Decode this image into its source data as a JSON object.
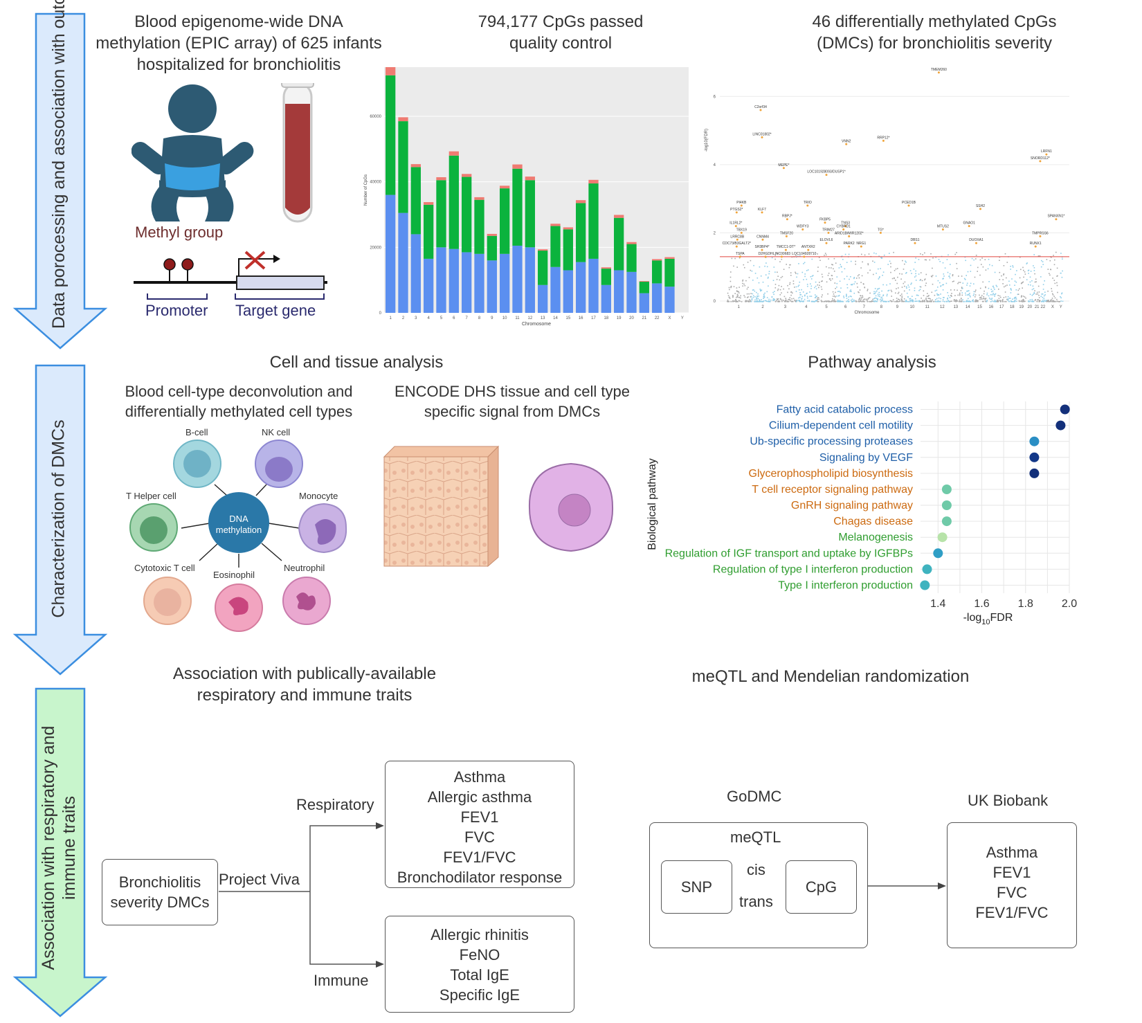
{
  "stages": [
    {
      "label": "Data porocessing and association with outcome",
      "color": "#dbeafc"
    },
    {
      "label": "Characterization of DMCs",
      "color": "#dbeafc"
    },
    {
      "label": "Association with respiratory and immune traits",
      "color": "#c8f5cc"
    }
  ],
  "section1": {
    "title1": "Blood epigenome-wide DNA methylation (EPIC array) of 625 infants hospitalized for bronchiolitis",
    "methyl_label": "Methyl group",
    "promoter_label": "Promoter",
    "target_label": "Target gene",
    "title2": "794,177 CpGs passed quality control",
    "title3": "46 differentially methylated CpGs (DMCs) for bronchiolitis severity"
  },
  "chart_data": [
    {
      "type": "bar",
      "title": "794,177 CpGs passed quality control",
      "xlabel": "Chromosome",
      "ylabel": "Number of CpGs",
      "ylim": [
        0,
        75000
      ],
      "yticks": [
        "0",
        "20000",
        "40000",
        "60000"
      ],
      "categories": [
        "1",
        "2",
        "3",
        "4",
        "5",
        "6",
        "7",
        "8",
        "9",
        "10",
        "11",
        "12",
        "13",
        "14",
        "15",
        "16",
        "17",
        "18",
        "19",
        "20",
        "21",
        "22",
        "X",
        "Y"
      ],
      "series": [
        {
          "name": "blue",
          "color": "#5b8ff0",
          "values": [
            36000,
            30500,
            24000,
            16500,
            20000,
            19500,
            18500,
            18000,
            16000,
            18000,
            20500,
            20000,
            8500,
            14000,
            13000,
            15500,
            16500,
            8500,
            13000,
            12500,
            6000,
            9000,
            8000,
            0
          ]
        },
        {
          "name": "green",
          "color": "#0bb33d",
          "values": [
            36500,
            28000,
            20500,
            16500,
            20500,
            28500,
            23000,
            16500,
            7500,
            20000,
            23500,
            20500,
            10500,
            12500,
            12500,
            18000,
            23000,
            5000,
            16000,
            8500,
            3500,
            7000,
            8500,
            0
          ]
        },
        {
          "name": "red",
          "color": "#ef7b72",
          "values": [
            2500,
            1200,
            900,
            800,
            900,
            1300,
            900,
            800,
            600,
            800,
            1300,
            1100,
            400,
            700,
            600,
            900,
            1100,
            400,
            900,
            600,
            200,
            400,
            500,
            0
          ]
        }
      ]
    },
    {
      "type": "scatter",
      "title": "46 differentially methylated CpGs (DMCs) for bronchiolitis severity",
      "xlabel": "Chromosome",
      "ylabel": "-log10(FDR)",
      "ylim": [
        0,
        7
      ],
      "yticks": [
        "0",
        "2",
        "4",
        "6"
      ],
      "categories": [
        "1",
        "2",
        "3",
        "4",
        "5",
        "6",
        "7",
        "8",
        "9",
        "10",
        "11",
        "12",
        "13",
        "14",
        "15",
        "16",
        "17",
        "18",
        "19",
        "20",
        "21",
        "22",
        "X",
        "Y"
      ],
      "threshold": 1.3,
      "labels": [
        "TMEM260",
        "C2orf34",
        "LINC01802*",
        "VNN2",
        "RRP12*",
        "LRFN1",
        "SNORD112*",
        "MEPE*",
        "LOC101928093/DUSP1*",
        "TRIO",
        "PI4KB",
        "PCED1B",
        "PTGS2*",
        "KLF7",
        "SSH2",
        "RBPJ*",
        "SPANXN1*",
        "IL1RL2*",
        "FKBP5",
        "TNS3",
        "GNAO1",
        "TBX19",
        "WDFY3",
        "CYBRD1",
        "TG*",
        "MTUS2",
        "TRIM27",
        "ARID1B/MIR1202*",
        "TMPRSS6",
        "LRRC8B",
        "CNNM4",
        "TMSF20",
        "DBS1",
        "DUOXA1",
        "CDC73/B3GALT2*",
        "SH3BP4*",
        "TMCC1-DT*",
        "ANTXR2",
        "PARK2",
        "NRG1",
        "RUNX1",
        "ELOVL6",
        "TSPA",
        "D2HGDH",
        "LINC00683",
        "LOC104928710"
      ]
    },
    {
      "type": "scatter",
      "title": "Pathway analysis",
      "xlabel": "-log10FDR",
      "ylabel": "Biological pathway",
      "xlim": [
        1.32,
        2.0
      ],
      "xticks": [
        "1.4",
        "1.6",
        "1.8",
        "2.0"
      ],
      "categories": [
        "Fatty acid catabolic process",
        "Cilium-dependent cell motility",
        "Ub-specific processing proteases",
        "Signaling by VEGF",
        "Glycerophospholipid biosynthesis",
        "T cell receptor signaling pathway",
        "GnRH signaling pathway",
        "Chagas disease",
        "Melanogenesis",
        "Regulation of IGF transport and uptake by IGFBPs",
        "Regulation of type I interferon production",
        "Type I interferon production"
      ],
      "values": [
        1.98,
        1.96,
        1.84,
        1.84,
        1.84,
        1.44,
        1.44,
        1.44,
        1.42,
        1.4,
        1.35,
        1.34
      ],
      "label_colors": [
        "#1f5fa8",
        "#1f5fa8",
        "#1f5fa8",
        "#1f5fa8",
        "#cc6a10",
        "#cc6a10",
        "#cc6a10",
        "#cc6a10",
        "#2f9d2f",
        "#2f9d2f",
        "#2f9d2f",
        "#2f9d2f"
      ],
      "point_colors": [
        "#13307a",
        "#13307a",
        "#2a8ec4",
        "#133888",
        "#13307a",
        "#6fcaa8",
        "#6fcaa8",
        "#6fcaa8",
        "#b7e3a9",
        "#2f9ec5",
        "#3fb3bf",
        "#3fb3bf"
      ]
    }
  ],
  "section2": {
    "cell_title": "Cell and tissue analysis",
    "pathway_title": "Pathway analysis",
    "deconv_title": "Blood cell-type deconvolution and differentially methylated cell types",
    "encode_title": "ENCODE DHS tissue and cell type specific signal from DMCs",
    "center_label": "DNA methylation",
    "cells": [
      "B-cell",
      "NK cell",
      "T Helper cell",
      "Monocyte",
      "Cytotoxic T cell",
      "Eosinophil",
      "Neutrophil"
    ]
  },
  "section3": {
    "assoc_title": "Association with publically-available respiratory and immune traits",
    "meqtl_title": "meQTL and Mendelian randomization",
    "source_box": "Bronchiolitis severity DMCs",
    "project_label": "Project Viva",
    "respiratory_label": "Respiratory",
    "immune_label": "Immune",
    "respiratory_traits": [
      "Asthma",
      "Allergic asthma",
      "FEV1",
      "FVC",
      "FEV1/FVC",
      "Bronchodilator response"
    ],
    "immune_traits": [
      "Allergic rhinitis",
      "FeNO",
      "Total IgE",
      "Specific IgE"
    ],
    "godmc_label": "GoDMC",
    "meqtl_label": "meQTL",
    "snp_label": "SNP",
    "cis_label": "cis",
    "trans_label": "trans",
    "cpg_label": "CpG",
    "ukb_label": "UK Biobank",
    "ukb_traits": [
      "Asthma",
      "FEV1",
      "FVC",
      "FEV1/FVC"
    ]
  }
}
